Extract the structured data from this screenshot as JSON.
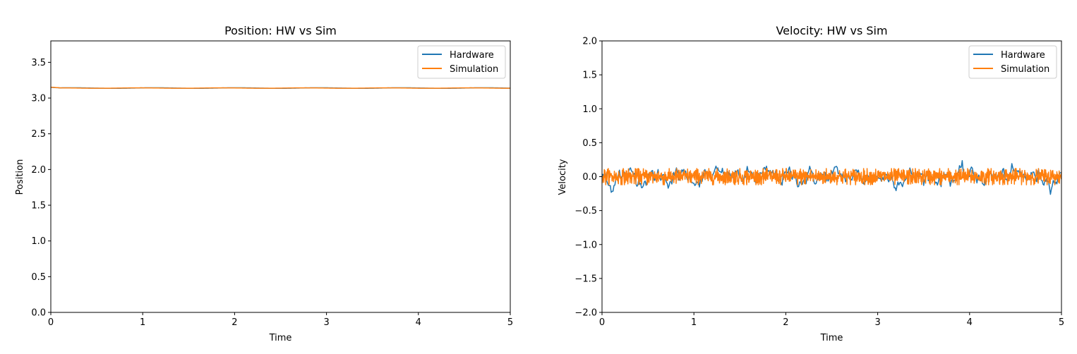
{
  "colors": {
    "hardware": "#1f77b4",
    "simulation": "#ff7f0e"
  },
  "chart_data": [
    {
      "type": "line",
      "title": "Position: HW vs Sim",
      "xlabel": "Time",
      "ylabel": "Position",
      "xlim": [
        0,
        5
      ],
      "ylim": [
        0,
        3.8
      ],
      "xticks": [
        "0",
        "1",
        "2",
        "3",
        "4",
        "5"
      ],
      "yticks": [
        "0.0",
        "0.5",
        "1.0",
        "1.5",
        "2.0",
        "2.5",
        "3.0",
        "3.5"
      ],
      "legend_position": "top-right",
      "series": [
        {
          "name": "Hardware",
          "color": "#1f77b4",
          "approx_level": 3.14,
          "noise_amplitude": 0.004
        },
        {
          "name": "Simulation",
          "color": "#ff7f0e",
          "approx_level": 3.14,
          "noise_amplitude": 0.003
        }
      ]
    },
    {
      "type": "line",
      "title": "Velocity: HW vs Sim",
      "xlabel": "Time",
      "ylabel": "Velocity",
      "xlim": [
        0,
        5
      ],
      "ylim": [
        -2.0,
        2.0
      ],
      "xticks": [
        "0",
        "1",
        "2",
        "3",
        "4",
        "5"
      ],
      "yticks": [
        "−2.0",
        "−1.5",
        "−1.0",
        "−0.5",
        "0.0",
        "0.5",
        "1.0",
        "1.5",
        "2.0"
      ],
      "legend_position": "top-right",
      "series": [
        {
          "name": "Hardware",
          "color": "#1f77b4",
          "approx_level": 0.0,
          "noise_amplitude": 0.12
        },
        {
          "name": "Simulation",
          "color": "#ff7f0e",
          "approx_level": 0.0,
          "noise_amplitude": 0.1
        }
      ]
    }
  ]
}
